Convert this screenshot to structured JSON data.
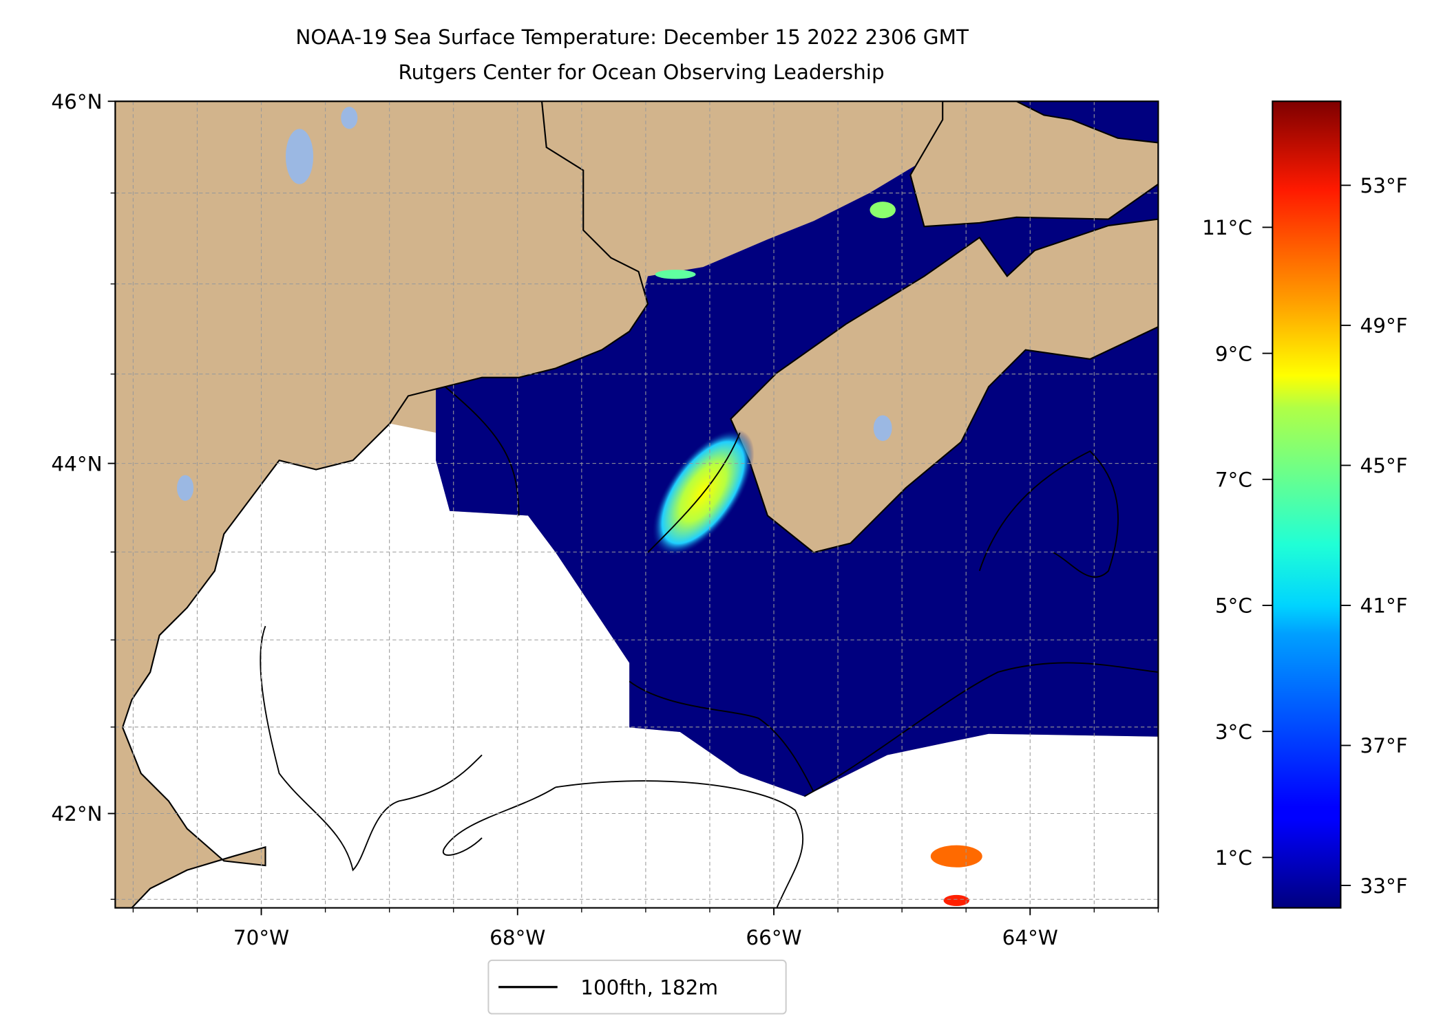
{
  "chart_data": {
    "type": "heatmap",
    "title": "NOAA-19 Sea Surface Temperature: December 15 2022 2306 GMT",
    "subtitle": "Rutgers Center for Ocean Observing Leadership",
    "xlim": [
      -71.14,
      -63.0
    ],
    "ylim": [
      41.45,
      46.0
    ],
    "grid": true,
    "x_ticks": [
      {
        "value": -70,
        "label": "70°W"
      },
      {
        "value": -68,
        "label": "68°W"
      },
      {
        "value": -66,
        "label": "66°W"
      },
      {
        "value": -64,
        "label": "64°W"
      }
    ],
    "y_ticks": [
      {
        "value": 46,
        "label": "46°N"
      },
      {
        "value": 44,
        "label": "44°N"
      },
      {
        "value": 42,
        "label": "42°N"
      }
    ],
    "grid_step_deg": 0.5,
    "colorbar": {
      "colormap": "jet",
      "range_c": [
        0.2,
        13.0
      ],
      "celsius_ticks": [
        {
          "value": 11,
          "label": "11°C"
        },
        {
          "value": 9,
          "label": "9°C"
        },
        {
          "value": 7,
          "label": "7°C"
        },
        {
          "value": 5,
          "label": "5°C"
        },
        {
          "value": 3,
          "label": "3°C"
        },
        {
          "value": 1,
          "label": "1°C"
        }
      ],
      "fahrenheit_ticks": [
        {
          "value": 53,
          "label": "53°F"
        },
        {
          "value": 49,
          "label": "49°F"
        },
        {
          "value": 45,
          "label": "45°F"
        },
        {
          "value": 41,
          "label": "41°F"
        },
        {
          "value": 37,
          "label": "37°F"
        },
        {
          "value": 33,
          "label": "33°F"
        }
      ]
    },
    "legend": {
      "label": "100fth, 182m",
      "placement": "bottom-center"
    },
    "colors": {
      "land": "#d2b48c",
      "lake": "#9bb8e3",
      "cold_water": "#00007f",
      "no_data": "#ffffff"
    }
  }
}
